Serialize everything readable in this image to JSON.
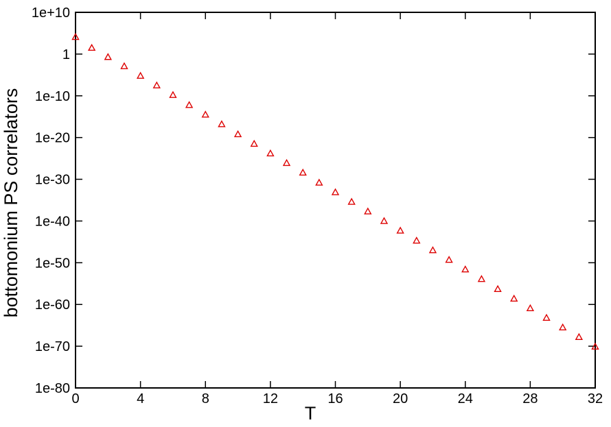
{
  "chart_data": {
    "type": "scatter",
    "xlabel": "T",
    "ylabel": "bottomonium PS correlators",
    "xlim": [
      0,
      32
    ],
    "ylim": [
      -80,
      10
    ],
    "y_scale": "log10",
    "grid": false,
    "x_ticks": [
      "0",
      "4",
      "8",
      "12",
      "16",
      "20",
      "24",
      "28",
      "32"
    ],
    "x_tick_values": [
      0,
      4,
      8,
      12,
      16,
      20,
      24,
      28,
      32
    ],
    "y_ticks": [
      "1e-80",
      "1e-70",
      "1e-60",
      "1e-50",
      "1e-40",
      "1e-30",
      "1e-20",
      "1e-10",
      "1",
      "1e+10"
    ],
    "y_tick_values": [
      -80,
      -70,
      -60,
      -50,
      -40,
      -30,
      -20,
      -10,
      0,
      10
    ],
    "series": [
      {
        "marker": "triangle",
        "color": "#dd0000",
        "x": [
          0,
          1,
          2,
          3,
          4,
          5,
          6,
          7,
          8,
          9,
          10,
          11,
          12,
          13,
          14,
          15,
          16,
          17,
          18,
          19,
          20,
          21,
          22,
          23,
          24,
          25,
          26,
          27,
          28,
          29,
          30,
          31,
          32
        ],
        "y_log10": [
          4.1,
          1.5,
          -0.7,
          -2.9,
          -5.2,
          -7.5,
          -9.8,
          -12.2,
          -14.5,
          -16.8,
          -19.2,
          -21.5,
          -23.8,
          -26.1,
          -28.4,
          -30.8,
          -33.1,
          -35.4,
          -37.7,
          -40.0,
          -42.3,
          -44.7,
          -47.0,
          -49.3,
          -51.6,
          -53.9,
          -56.3,
          -58.6,
          -60.9,
          -63.2,
          -65.5,
          -67.8,
          -70.1
        ]
      }
    ]
  }
}
